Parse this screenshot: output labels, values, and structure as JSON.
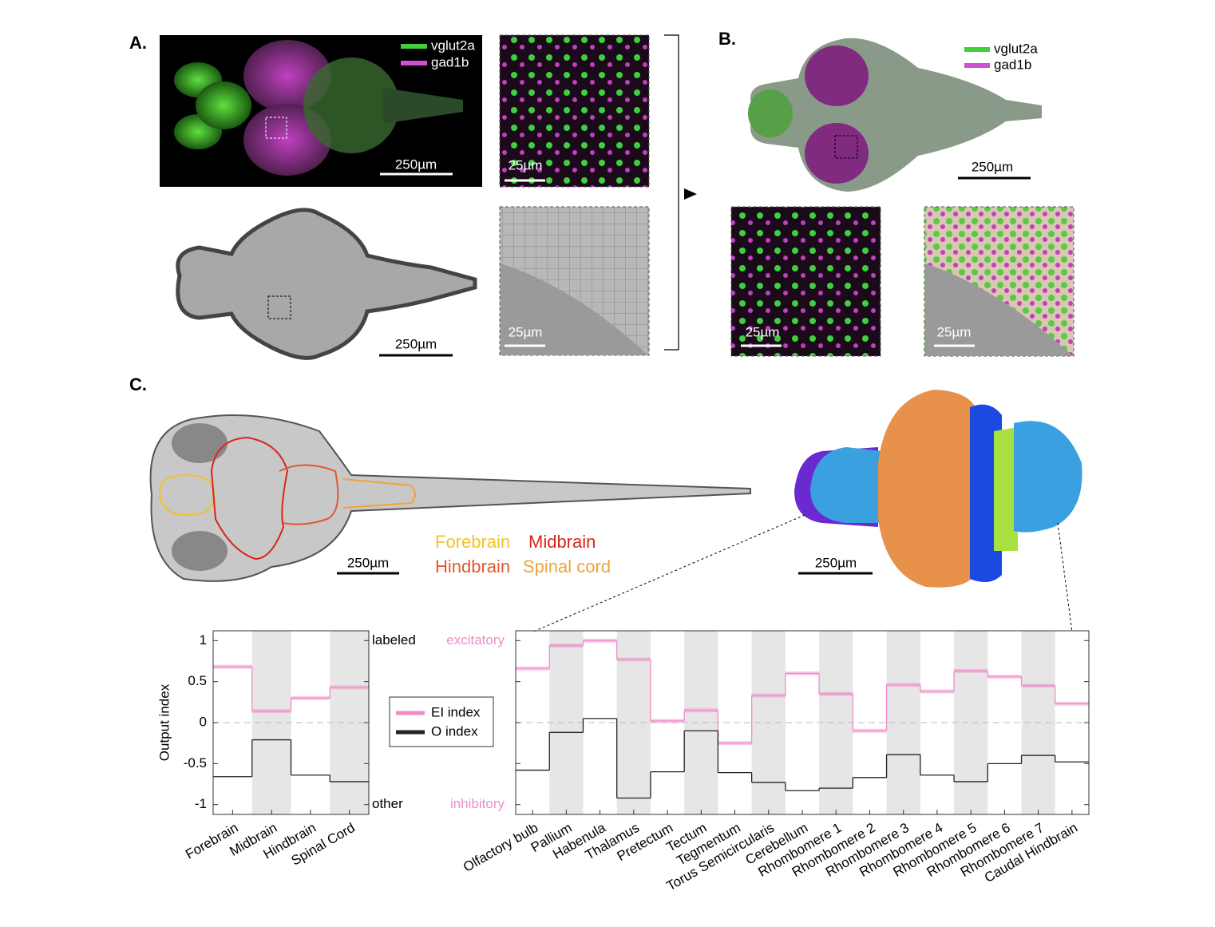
{
  "panel_labels": [
    "A.",
    "B.",
    "C."
  ],
  "panel_a": {
    "legend": [
      "vglut2a",
      "gad1b"
    ],
    "scale_bars": [
      "250µm",
      "25µm",
      "250µm",
      "25µm"
    ]
  },
  "panel_b": {
    "legend": [
      "vglut2a",
      "gad1b"
    ],
    "scale_bars": [
      "250µm",
      "25µm",
      "25µm"
    ]
  },
  "panel_c": {
    "regions": [
      {
        "label": "Forebrain",
        "color": "#f2c12e"
      },
      {
        "label": "Midbrain",
        "color": "#d7261e"
      },
      {
        "label": "Hindbrain",
        "color": "#e4572e"
      },
      {
        "label": "Spinal cord",
        "color": "#f0a33a"
      }
    ],
    "scale_bars": [
      "250µm",
      "250µm"
    ]
  },
  "chart_data": [
    {
      "type": "step",
      "ylabel": "Output index",
      "categories": [
        "Forebrain",
        "Midbrain",
        "Hindbrain",
        "Spinal Cord"
      ],
      "series": [
        {
          "name": "EI index",
          "color": "#f08cc8",
          "values": [
            0.68,
            0.14,
            0.3,
            0.43
          ]
        },
        {
          "name": "O index",
          "color": "#222222",
          "values": [
            -0.66,
            -0.21,
            -0.64,
            -0.72
          ]
        }
      ],
      "ylim": [
        -1.12,
        1.12
      ],
      "yticks": [
        -1,
        -0.5,
        0,
        0.5,
        1
      ],
      "y2_annotations": [
        {
          "value": 1,
          "label": "labeled"
        },
        {
          "value": -1,
          "label": "other"
        }
      ],
      "zero_line": true,
      "shade_alternate": true
    },
    {
      "type": "step",
      "categories": [
        "Olfactory bulb",
        "Pallium",
        "Habenula",
        "Thalamus",
        "Pretectum",
        "Tectum",
        "Tegmentum",
        "Torus Semicircularis",
        "Cerebellum",
        "Rhombomere 1",
        "Rhombomere 2",
        "Rhombomere 3",
        "Rhombomere 4",
        "Rhombomere 5",
        "Rhombomere 6",
        "Rhombomere 7",
        "Caudal Hindbrain"
      ],
      "series": [
        {
          "color": "#f08cc8",
          "values": [
            0.66,
            0.94,
            1.0,
            0.77,
            0.02,
            0.15,
            -0.25,
            0.33,
            0.6,
            0.35,
            -0.1,
            0.46,
            0.38,
            0.63,
            0.56,
            0.45,
            0.23
          ]
        },
        {
          "color": "#222222",
          "values": [
            -0.58,
            -0.12,
            0.05,
            -0.92,
            -0.6,
            -0.1,
            -0.61,
            -0.73,
            -0.83,
            -0.8,
            -0.67,
            -0.39,
            -0.64,
            -0.72,
            -0.5,
            -0.4,
            -0.48
          ]
        }
      ],
      "ylim": [
        -1.12,
        1.12
      ],
      "yticks": [
        -1,
        -0.5,
        0,
        0.5,
        1
      ],
      "y_annotations": [
        {
          "value": 1,
          "label": "excitatory"
        },
        {
          "value": -1,
          "label": "inhibitory"
        }
      ],
      "annotation_color": "#f08cc8",
      "zero_line": true,
      "shade_alternate": true
    }
  ]
}
